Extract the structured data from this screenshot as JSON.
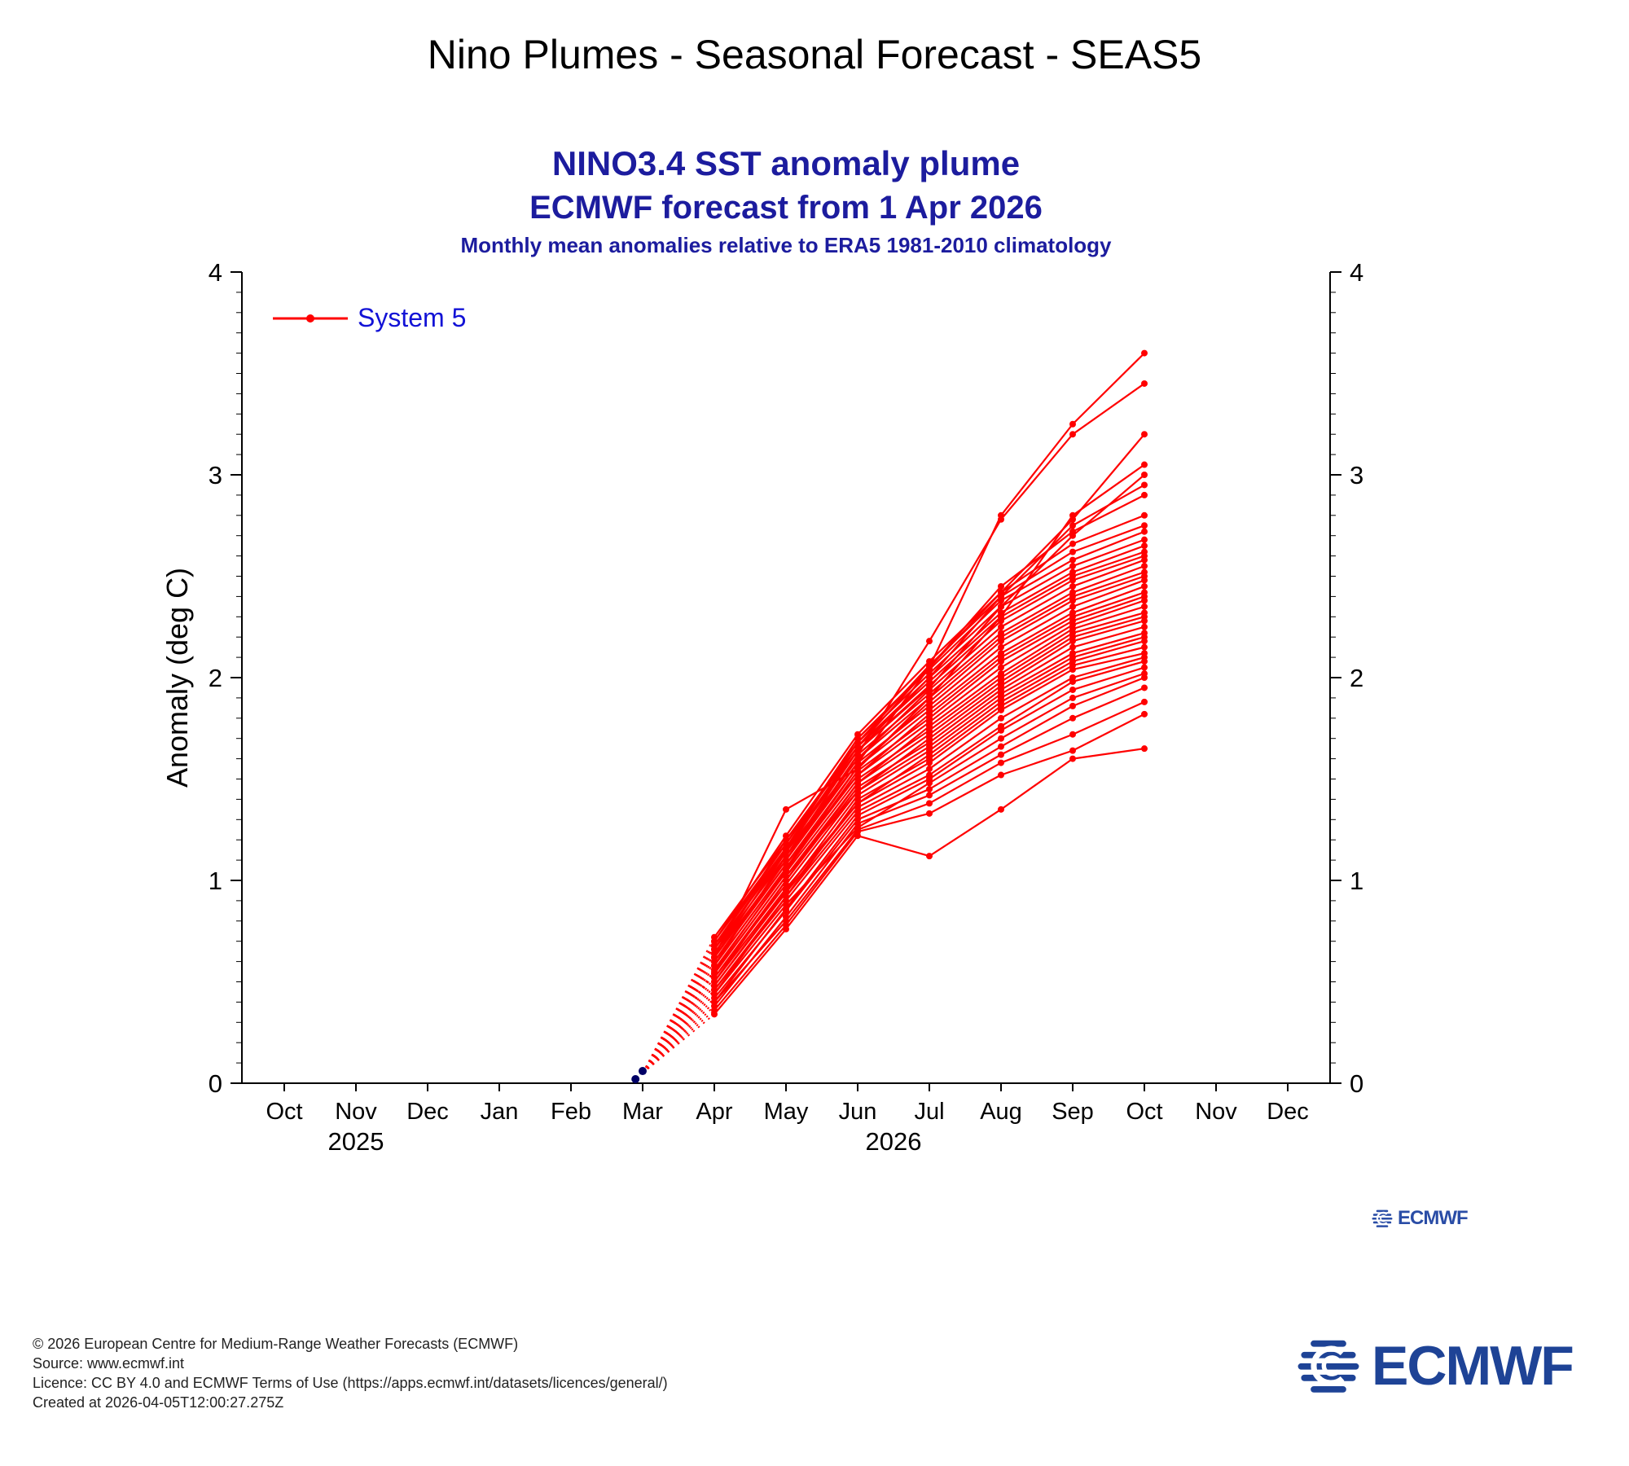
{
  "page": {
    "title": "Nino Plumes - Seasonal Forecast - SEAS5"
  },
  "colors": {
    "title_navy": "#1c1c9e",
    "legend_text_blue": "#1212d6",
    "plume_red": "#ff0000",
    "observed_navy": "#000066",
    "logo_blue": "#1e4396",
    "axis_black": "#000000"
  },
  "chart_data": {
    "type": "line",
    "title": "NINO3.4 SST anomaly plume",
    "subtitle": "ECMWF forecast from 1 Apr 2026",
    "subsubtitle": "Monthly mean anomalies relative to ERA5 1981-2010 climatology",
    "ylabel": "Anomaly (deg C)",
    "ylim": [
      0,
      4
    ],
    "ytick_major": [
      0,
      1,
      2,
      3,
      4
    ],
    "ytick_minor_step": 0.1,
    "grid": false,
    "legend_position": "top-left-inside",
    "x_axis": {
      "categories": [
        "Oct",
        "Nov",
        "Dec",
        "Jan",
        "Feb",
        "Mar",
        "Apr",
        "May",
        "Jun",
        "Jul",
        "Aug",
        "Sep",
        "Oct",
        "Nov",
        "Dec"
      ],
      "year_labels": [
        {
          "label": "2025",
          "month_index": 1
        },
        {
          "label": "2026",
          "month_index": 8.5
        }
      ]
    },
    "legend": [
      {
        "label": "System 5",
        "color": "#ff0000"
      }
    ],
    "series_color": "#ff0000",
    "forecast_months": [
      "Mar 2026",
      "Apr 2026",
      "May 2026",
      "Jun 2026",
      "Jul 2026",
      "Aug 2026",
      "Sep 2026",
      "Oct 2026"
    ],
    "start_axis_index": 5,
    "members": [
      [
        0.05,
        0.34,
        0.76,
        1.22,
        1.12,
        1.35,
        1.6,
        1.65
      ],
      [
        0.05,
        0.36,
        0.78,
        1.24,
        1.33,
        1.52,
        1.64,
        1.82
      ],
      [
        0.05,
        0.4,
        0.8,
        1.25,
        1.38,
        1.58,
        1.72,
        1.88
      ],
      [
        0.05,
        0.38,
        0.82,
        1.28,
        1.42,
        1.62,
        1.8,
        1.95
      ],
      [
        0.05,
        0.42,
        0.85,
        1.3,
        1.45,
        1.66,
        1.86,
        2.0
      ],
      [
        0.05,
        0.44,
        0.88,
        1.26,
        1.48,
        1.7,
        1.9,
        2.02
      ],
      [
        0.05,
        0.4,
        0.86,
        1.32,
        1.5,
        1.74,
        1.94,
        2.05
      ],
      [
        0.05,
        0.46,
        0.9,
        1.34,
        1.52,
        1.76,
        1.98,
        2.08
      ],
      [
        0.05,
        0.44,
        0.92,
        1.36,
        1.55,
        1.8,
        2.0,
        2.1
      ],
      [
        0.05,
        0.48,
        0.94,
        1.38,
        1.58,
        1.84,
        2.04,
        2.12
      ],
      [
        0.05,
        0.46,
        0.92,
        1.4,
        1.6,
        1.86,
        2.06,
        2.15
      ],
      [
        0.05,
        0.5,
        0.96,
        1.38,
        1.62,
        1.88,
        2.08,
        2.18
      ],
      [
        0.05,
        0.48,
        0.95,
        1.42,
        1.64,
        1.9,
        2.1,
        2.2
      ],
      [
        0.05,
        0.52,
        0.98,
        1.44,
        1.66,
        1.92,
        2.12,
        2.22
      ],
      [
        0.05,
        0.5,
        1.0,
        1.46,
        1.68,
        1.94,
        2.15,
        2.25
      ],
      [
        0.05,
        0.54,
        1.02,
        1.44,
        1.7,
        1.96,
        2.18,
        2.28
      ],
      [
        0.05,
        0.52,
        1.0,
        1.48,
        1.72,
        1.98,
        2.2,
        2.3
      ],
      [
        0.05,
        0.56,
        1.04,
        1.5,
        1.74,
        2.0,
        2.22,
        2.32
      ],
      [
        0.05,
        0.54,
        1.02,
        1.48,
        1.76,
        2.02,
        2.24,
        2.35
      ],
      [
        0.05,
        0.58,
        1.06,
        1.52,
        1.78,
        2.05,
        2.26,
        2.38
      ],
      [
        0.05,
        0.55,
        1.05,
        1.54,
        1.8,
        2.08,
        2.28,
        2.4
      ],
      [
        0.05,
        0.6,
        1.08,
        1.52,
        1.82,
        2.1,
        2.3,
        2.42
      ],
      [
        0.05,
        0.58,
        1.06,
        1.56,
        1.84,
        2.12,
        2.32,
        2.45
      ],
      [
        0.05,
        0.62,
        1.1,
        1.58,
        1.86,
        2.15,
        2.35,
        2.48
      ],
      [
        0.05,
        0.6,
        1.08,
        1.56,
        1.88,
        2.18,
        2.38,
        2.5
      ],
      [
        0.05,
        0.64,
        1.12,
        1.6,
        1.9,
        2.2,
        2.4,
        2.52
      ],
      [
        0.05,
        0.62,
        1.1,
        1.62,
        1.92,
        2.22,
        2.42,
        2.55
      ],
      [
        0.05,
        0.66,
        1.14,
        1.6,
        1.94,
        2.25,
        2.45,
        2.58
      ],
      [
        0.05,
        0.64,
        1.12,
        1.64,
        1.96,
        2.28,
        2.48,
        2.6
      ],
      [
        0.05,
        0.68,
        1.16,
        1.66,
        1.98,
        2.3,
        2.5,
        2.62
      ],
      [
        0.05,
        0.66,
        1.15,
        1.64,
        2.0,
        2.32,
        2.52,
        2.65
      ],
      [
        0.05,
        0.7,
        1.18,
        1.68,
        2.02,
        2.35,
        2.55,
        2.68
      ],
      [
        0.05,
        0.68,
        1.16,
        1.7,
        2.04,
        2.38,
        2.58,
        2.72
      ],
      [
        0.05,
        0.72,
        1.2,
        1.68,
        2.06,
        2.4,
        2.62,
        2.75
      ],
      [
        0.05,
        0.7,
        1.22,
        1.72,
        2.08,
        2.42,
        2.66,
        2.8
      ],
      [
        0.05,
        0.68,
        1.18,
        1.7,
        2.05,
        2.45,
        2.72,
        2.9
      ],
      [
        0.05,
        0.66,
        1.2,
        1.66,
        2.0,
        2.4,
        2.75,
        2.95
      ],
      [
        0.05,
        0.64,
        1.16,
        1.64,
        1.95,
        2.35,
        2.7,
        3.0
      ],
      [
        0.05,
        0.62,
        1.35,
        1.55,
        1.9,
        2.3,
        2.8,
        3.05
      ],
      [
        0.05,
        0.58,
        1.12,
        1.58,
        2.05,
        2.42,
        2.78,
        3.2
      ],
      [
        0.05,
        0.6,
        1.1,
        1.62,
        2.18,
        2.78,
        3.2,
        3.45
      ],
      [
        0.05,
        0.62,
        1.14,
        1.66,
        2.05,
        2.8,
        3.25,
        3.6
      ]
    ],
    "observed": {
      "color": "#000066",
      "points": [
        {
          "month": "Mar 2026",
          "axis_index": 4.9,
          "value": 0.02
        },
        {
          "month": "Mar 2026",
          "axis_index": 5,
          "value": 0.06
        }
      ]
    }
  },
  "figure_logo": {
    "text": "ECMWF"
  },
  "big_logo": {
    "text": "ECMWF"
  },
  "footer": {
    "lines": [
      "© 2026 European Centre for Medium-Range Weather Forecasts (ECMWF)",
      "Source: www.ecmwf.int",
      "Licence: CC BY 4.0 and ECMWF Terms of Use (https://apps.ecmwf.int/datasets/licences/general/)",
      "Created at 2026-04-05T12:00:27.275Z"
    ]
  }
}
